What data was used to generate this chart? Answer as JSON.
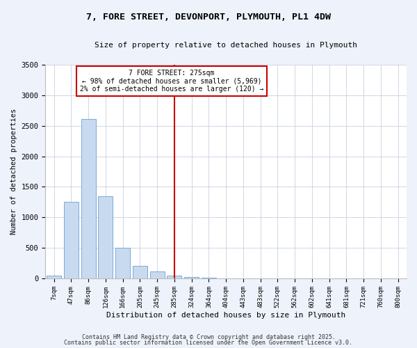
{
  "title": "7, FORE STREET, DEVONPORT, PLYMOUTH, PL1 4DW",
  "subtitle": "Size of property relative to detached houses in Plymouth",
  "xlabel": "Distribution of detached houses by size in Plymouth",
  "ylabel": "Number of detached properties",
  "bar_categories": [
    "7sqm",
    "47sqm",
    "86sqm",
    "126sqm",
    "166sqm",
    "205sqm",
    "245sqm",
    "285sqm",
    "324sqm",
    "364sqm",
    "404sqm",
    "443sqm",
    "483sqm",
    "522sqm",
    "562sqm",
    "602sqm",
    "641sqm",
    "681sqm",
    "721sqm",
    "760sqm",
    "800sqm"
  ],
  "bar_values": [
    50,
    1250,
    2610,
    1350,
    500,
    200,
    110,
    40,
    20,
    10,
    5,
    3,
    2,
    1,
    0,
    0,
    0,
    0,
    0,
    0,
    0
  ],
  "bar_color": "#c8daf0",
  "bar_edge_color": "#7aaad4",
  "vline_x": 7,
  "vline_color": "#cc0000",
  "annotation_title": "7 FORE STREET: 275sqm",
  "annotation_line1": "← 98% of detached houses are smaller (5,969)",
  "annotation_line2": "2% of semi-detached houses are larger (120) →",
  "annotation_box_color": "#cc0000",
  "ylim": [
    0,
    3500
  ],
  "yticks": [
    0,
    500,
    1000,
    1500,
    2000,
    2500,
    3000,
    3500
  ],
  "bg_color": "#eef2fb",
  "plot_bg_color": "#ffffff",
  "grid_color": "#c8d0e0",
  "footer1": "Contains HM Land Registry data © Crown copyright and database right 2025.",
  "footer2": "Contains public sector information licensed under the Open Government Licence v3.0."
}
